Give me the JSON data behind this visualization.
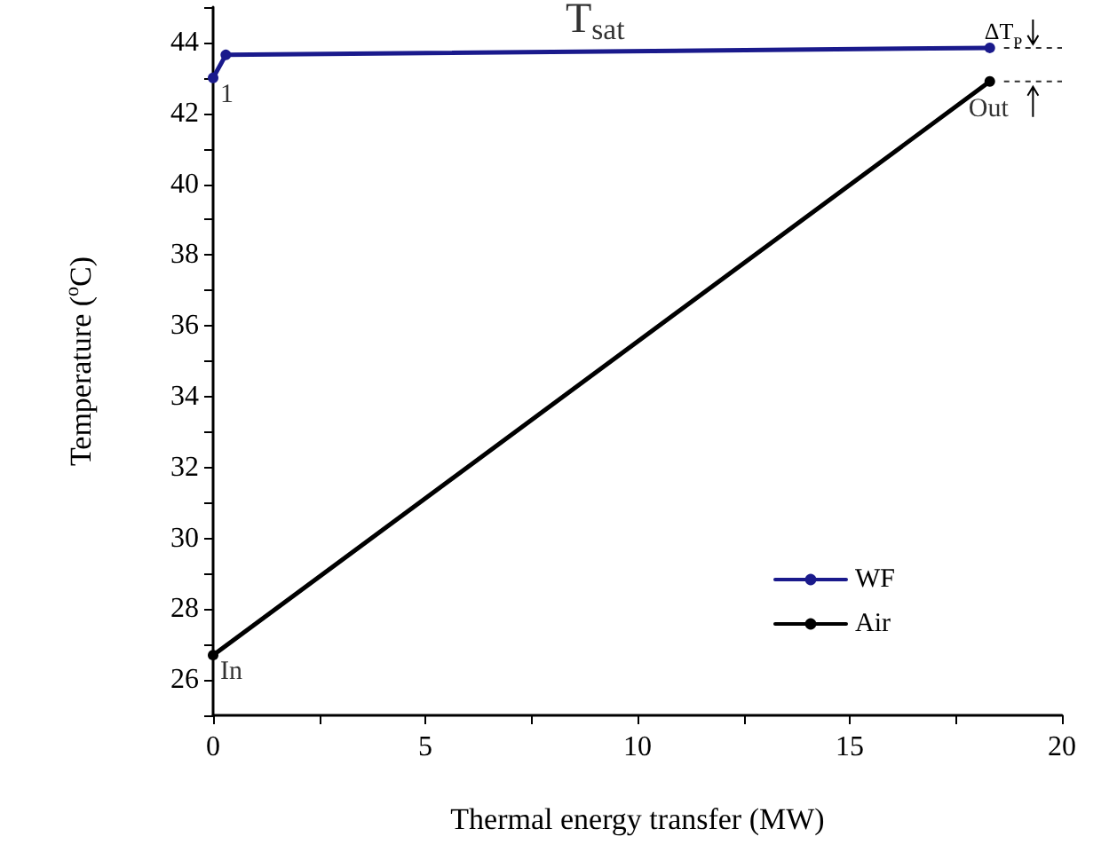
{
  "chart_data": {
    "type": "line",
    "xlabel": "Thermal energy transfer (MW)",
    "ylabel": "Temperature ($^{o}$C)",
    "xlim": [
      0,
      20
    ],
    "xticks": [
      0,
      {
        "value": 2.5,
        "label": null
      },
      5,
      {
        "value": 7.5,
        "label": null
      },
      10,
      {
        "value": 12.5,
        "label": null
      },
      15,
      {
        "value": 17.5,
        "label": null
      },
      20
    ],
    "ylim": [
      25,
      45
    ],
    "yticks": [
      {
        "value": 25,
        "label": null
      },
      26,
      {
        "value": 27,
        "label": null
      },
      28,
      {
        "value": 29,
        "label": null
      },
      30,
      {
        "value": 31,
        "label": null
      },
      32,
      {
        "value": 33,
        "label": null
      },
      34,
      {
        "value": 35,
        "label": null
      },
      36,
      {
        "value": 37,
        "label": null
      },
      38,
      {
        "value": 39,
        "label": null
      },
      40,
      {
        "value": 41,
        "label": null
      },
      42,
      {
        "value": 43,
        "label": null
      },
      44,
      {
        "value": 45,
        "label": null
      }
    ],
    "series": [
      {
        "name": "WF",
        "color": "#1a1a8c",
        "x": [
          0,
          0.3,
          18.3
        ],
        "values": [
          43.0,
          43.65,
          43.85
        ]
      },
      {
        "name": "Air",
        "color": "#000000",
        "x": [
          0,
          18.3
        ],
        "values": [
          26.7,
          42.9
        ]
      }
    ],
    "annotations": [
      {
        "text": "T$_{sat}$",
        "x": 9,
        "y": 43.75
      },
      {
        "text": "1",
        "x": 0,
        "y": 43.0
      },
      {
        "text": "In",
        "x": 0,
        "y": 26.7
      },
      {
        "text": "Out",
        "x": 18.3,
        "y": 42.9
      },
      "ΔT$_{P}$"
    ],
    "legend": "bottom right",
    "marker": "circle",
    "grid": false
  }
}
